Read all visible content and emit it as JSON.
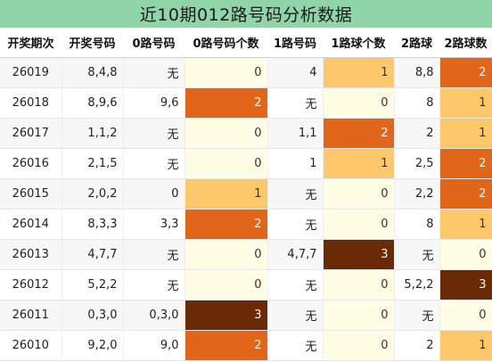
{
  "title": "近10期012路号码分析数据",
  "columns": [
    "开奖期次",
    "开奖号码",
    "0路号码",
    "0路号码个数",
    "1路号码",
    "1路球个数",
    "2路球",
    "2路球数"
  ],
  "rows": [
    {
      "period": "26019",
      "draw": "8,4,8",
      "r0": "无",
      "r0c": "0",
      "r1": "4",
      "r1c": "1",
      "r2": "8,8",
      "r2c": "2"
    },
    {
      "period": "26018",
      "draw": "8,9,6",
      "r0": "9,6",
      "r0c": "2",
      "r1": "无",
      "r1c": "0",
      "r2": "8",
      "r2c": "1"
    },
    {
      "period": "26017",
      "draw": "1,1,2",
      "r0": "无",
      "r0c": "0",
      "r1": "1,1",
      "r1c": "2",
      "r2": "2",
      "r2c": "1"
    },
    {
      "period": "26016",
      "draw": "2,1,5",
      "r0": "无",
      "r0c": "0",
      "r1": "1",
      "r1c": "1",
      "r2": "2,5",
      "r2c": "2"
    },
    {
      "period": "26015",
      "draw": "2,0,2",
      "r0": "0",
      "r0c": "1",
      "r1": "无",
      "r1c": "0",
      "r2": "2,2",
      "r2c": "2"
    },
    {
      "period": "26014",
      "draw": "8,3,3",
      "r0": "3,3",
      "r0c": "2",
      "r1": "无",
      "r1c": "0",
      "r2": "8",
      "r2c": "1"
    },
    {
      "period": "26013",
      "draw": "4,7,7",
      "r0": "无",
      "r0c": "0",
      "r1": "4,7,7",
      "r1c": "3",
      "r2": "无",
      "r2c": "0"
    },
    {
      "period": "26012",
      "draw": "5,2,2",
      "r0": "无",
      "r0c": "0",
      "r1": "无",
      "r1c": "0",
      "r2": "5,2,2",
      "r2c": "3"
    },
    {
      "period": "26011",
      "draw": "0,3,0",
      "r0": "0,3,0",
      "r0c": "3",
      "r1": "无",
      "r1c": "0",
      "r2": "无",
      "r2c": "0"
    },
    {
      "period": "26010",
      "draw": "9,2,0",
      "r0": "9,0",
      "r0c": "2",
      "r1": "无",
      "r1c": "0",
      "r2": "2",
      "r2c": "1"
    }
  ],
  "colors": {
    "title_bg": "#90d5a8",
    "count_0": "#fffde3",
    "count_1": "#fdc86a",
    "count_2": "#e2661a",
    "count_3": "#6b2a06"
  }
}
